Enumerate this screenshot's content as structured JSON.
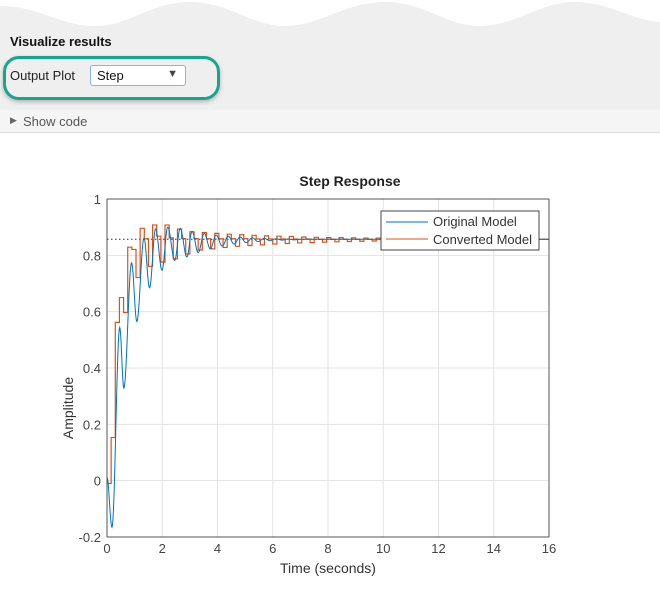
{
  "section": {
    "title": "Visualize results"
  },
  "output_plot": {
    "label": "Output Plot",
    "selected": "Step",
    "arrow_icon": "triangle-down-icon",
    "highlight_color": "#1aa58a"
  },
  "show_code": {
    "label": "Show code",
    "icon": "triangle-right-icon"
  },
  "chart_data": {
    "type": "line",
    "title": "Step Response",
    "xlabel": "Time (seconds)",
    "ylabel": "Amplitude",
    "xlim": [
      0,
      16
    ],
    "ylim": [
      -0.2,
      1
    ],
    "xticks": [
      "0",
      "2",
      "4",
      "6",
      "8",
      "10",
      "12",
      "14",
      "16"
    ],
    "yticks": [
      "-0.2",
      "0",
      "0.2",
      "0.4",
      "0.6",
      "0.8",
      "1"
    ],
    "grid": true,
    "legend": "top-right",
    "steady_state": 0.857,
    "series": [
      {
        "name": "Original Model",
        "color": "#0072bd",
        "style": "smooth",
        "x": [
          0,
          0.18,
          0.46,
          0.61,
          0.89,
          1.08,
          1.34,
          1.54,
          1.76,
          1.99,
          2.2,
          2.45,
          2.65,
          2.89,
          3.08,
          3.3,
          3.52,
          3.74,
          3.95,
          4.17,
          4.39,
          4.6,
          4.82,
          5.04,
          5.26,
          5.47,
          5.69,
          5.9,
          6.12,
          6.34,
          6.56,
          6.77,
          7.0,
          16
        ],
        "y": [
          0.012,
          -0.165,
          0.544,
          0.329,
          0.773,
          0.565,
          0.861,
          0.685,
          0.894,
          0.747,
          0.9,
          0.782,
          0.896,
          0.794,
          0.885,
          0.81,
          0.878,
          0.823,
          0.872,
          0.833,
          0.868,
          0.84,
          0.865,
          0.845,
          0.862,
          0.849,
          0.86,
          0.852,
          0.859,
          0.854,
          0.858,
          0.855,
          0.857,
          0.857
        ]
      },
      {
        "name": "Converted Model",
        "color": "#d95319",
        "style": "stairs",
        "sample_time": 0.15,
        "y": [
          -0.01,
          0.153,
          0.562,
          0.65,
          0.597,
          0.829,
          0.821,
          0.721,
          0.896,
          0.859,
          0.761,
          0.908,
          0.868,
          0.776,
          0.908,
          0.862,
          0.788,
          0.893,
          0.86,
          0.805,
          0.884,
          0.86,
          0.819,
          0.881,
          0.859,
          0.823,
          0.878,
          0.859,
          0.828,
          0.875,
          0.859,
          0.832,
          0.873,
          0.859,
          0.835,
          0.871,
          0.858,
          0.837,
          0.869,
          0.858,
          0.84,
          0.868,
          0.858,
          0.842,
          0.867,
          0.858,
          0.844,
          0.865,
          0.858,
          0.845,
          0.864,
          0.857,
          0.847,
          0.863,
          0.857,
          0.848,
          0.863,
          0.857,
          0.849,
          0.862,
          0.857,
          0.85,
          0.861,
          0.857,
          0.851,
          0.861,
          0.857,
          0.852,
          0.86,
          0.857,
          0.852,
          0.86,
          0.857,
          0.853,
          0.86,
          0.857,
          0.854,
          0.859,
          0.857,
          0.854,
          0.859,
          0.857,
          0.854,
          0.859,
          0.857,
          0.855,
          0.859,
          0.857,
          0.855,
          0.858,
          0.857,
          0.855,
          0.858,
          0.857,
          0.856,
          0.858,
          0.857,
          0.856,
          0.858,
          0.857,
          0.856,
          0.858,
          0.857,
          0.856,
          0.857,
          0.857,
          0.857
        ]
      }
    ]
  }
}
